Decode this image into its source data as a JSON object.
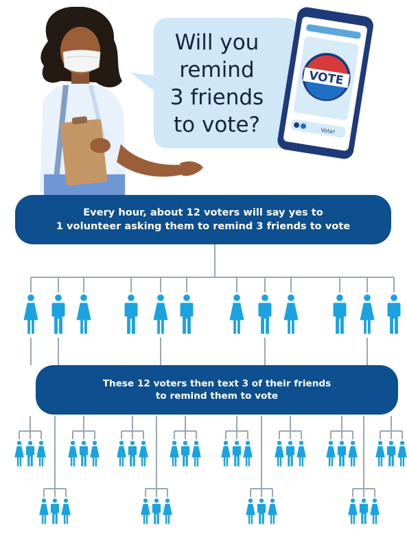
{
  "speech_bubble": {
    "lines": [
      "Will you",
      "remind",
      "3 friends",
      "to vote?"
    ]
  },
  "phone": {
    "badge_text": "VOTE",
    "message_text": "Vote!"
  },
  "banner_top": {
    "line1": "Every hour, about 12 voters will say yes to",
    "line2": "1 volunteer asking them to remind 3 friends to vote"
  },
  "banner_middle": {
    "line1": "These 12 voters then text 3 of their friends",
    "line2": "to remind them to vote"
  },
  "colors": {
    "banner": "#0d4f8f",
    "person": "#1aa3df",
    "line": "#9aa7b5",
    "bubble": "#cfe7f6",
    "phone_frame": "#1f3a78",
    "badge_red": "#d83a3a"
  },
  "icons": [
    "woman-icon",
    "man-icon",
    "phone-icon",
    "vote-badge-icon",
    "tree-connector"
  ]
}
